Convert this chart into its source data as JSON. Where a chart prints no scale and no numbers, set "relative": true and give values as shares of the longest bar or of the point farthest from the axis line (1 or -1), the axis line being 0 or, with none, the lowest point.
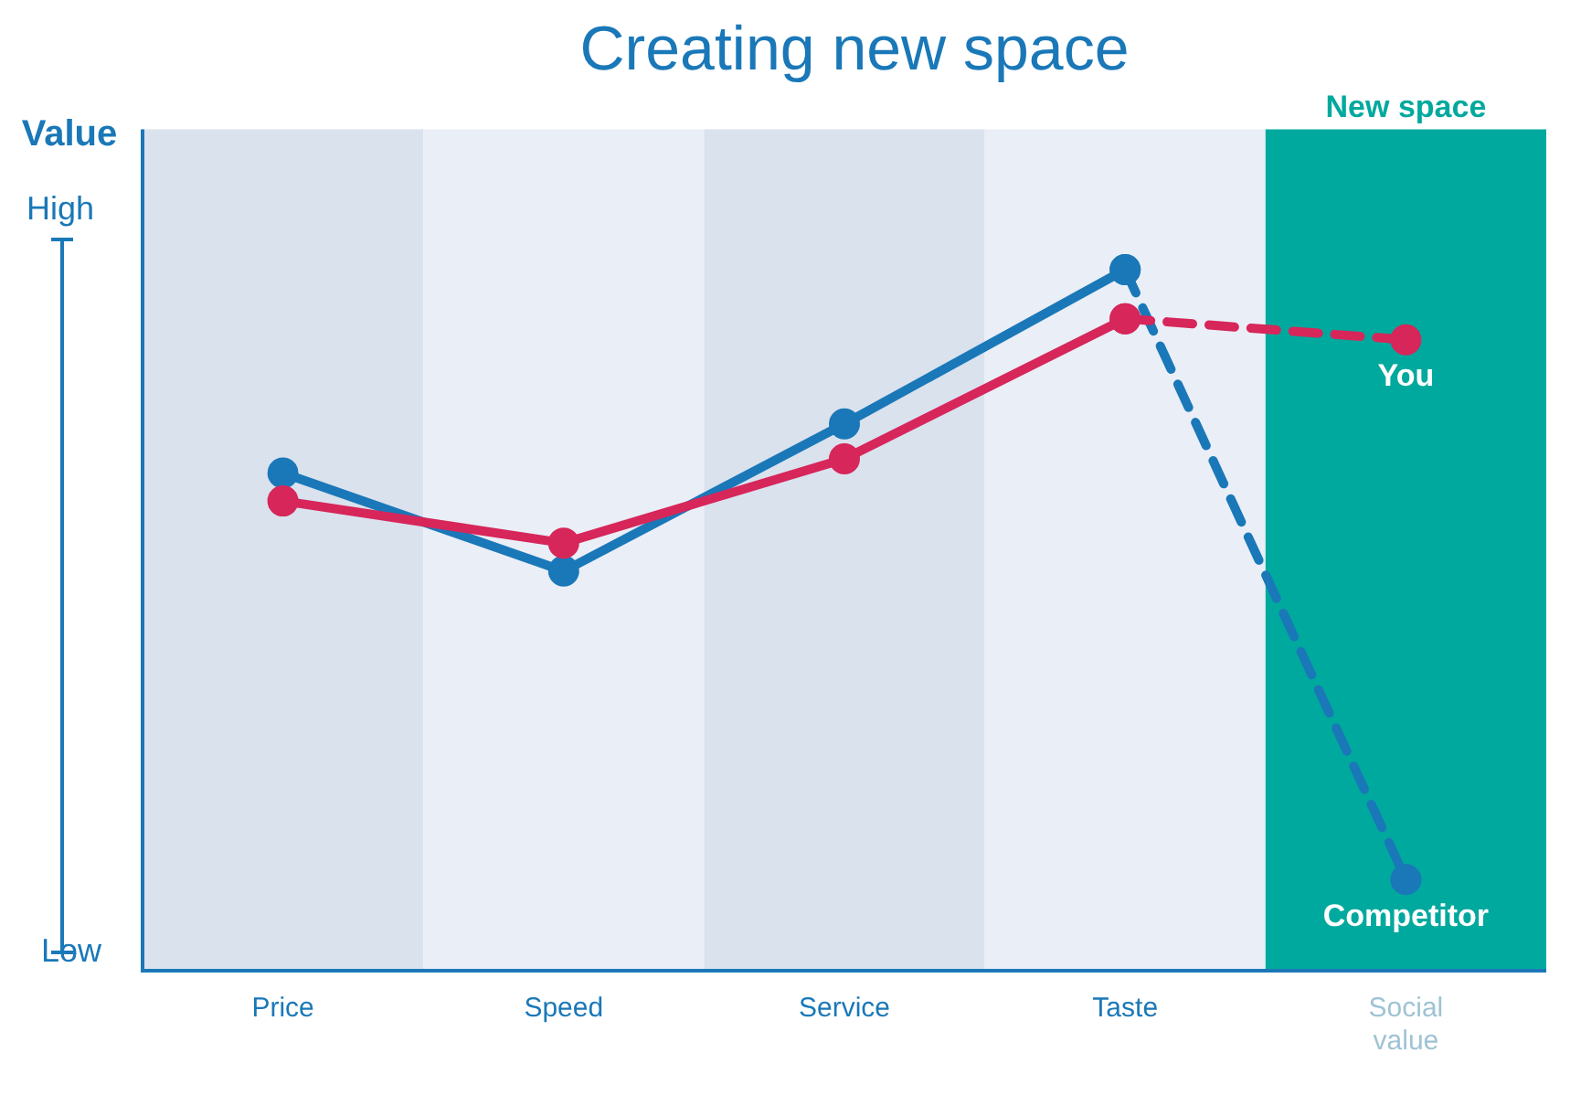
{
  "chart_data": {
    "type": "line",
    "title": "Creating new space",
    "ylabel": "Value",
    "relative": true,
    "categories": [
      "Price",
      "Speed",
      "Service",
      "Taste",
      "Social value"
    ],
    "series": [
      {
        "color": "#d6265a",
        "line_style": "solid",
        "values": [
          0.67,
          0.61,
          0.73,
          0.93,
          null
        ]
      },
      {
        "color": "#1a78b8",
        "line_style": "solid",
        "values": [
          0.71,
          0.57,
          0.78,
          1,
          null
        ]
      },
      {
        "name": "You",
        "color": "#d6265a",
        "line_style": "dashed",
        "values": [
          null,
          null,
          null,
          0.93,
          0.9
        ]
      },
      {
        "name": "Competitor",
        "color": "#1a78b8",
        "line_style": "dashed",
        "values": [
          null,
          null,
          null,
          1,
          0.13
        ]
      }
    ],
    "bands": [
      {
        "axis": "x",
        "from": "Price",
        "to": "Price",
        "color": "#dae2ee"
      },
      {
        "axis": "x",
        "from": "Speed",
        "to": "Speed",
        "color": "#eaeef6"
      },
      {
        "axis": "x",
        "from": "Service",
        "to": "Service",
        "color": "#dae2ee"
      },
      {
        "axis": "x",
        "from": "Taste",
        "to": "Taste",
        "color": "#eaeef6"
      },
      {
        "axis": "x",
        "from": "Social value",
        "to": "Social value",
        "label": "New space",
        "color": "#00a99d"
      }
    ],
    "annotations": [
      "High",
      "Low"
    ],
    "marker": "circle",
    "grid": false,
    "legend": false
  }
}
